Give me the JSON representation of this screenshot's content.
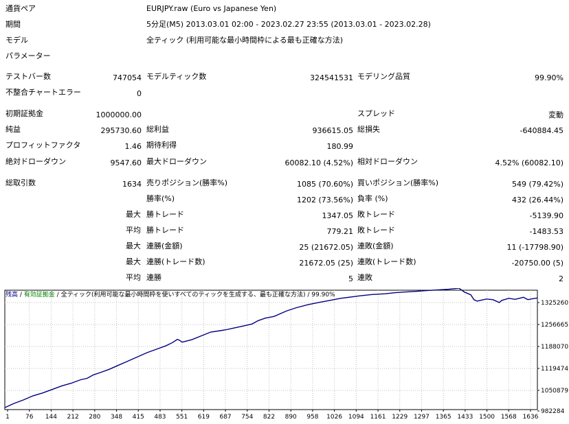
{
  "info": {
    "symbol_label": "通貨ペア",
    "symbol_value": "EURJPY.raw (Euro vs Japanese Yen)",
    "period_label": "期間",
    "period_value": "5分足(M5) 2013.03.01 02:00 - 2023.02.27 23:55 (2013.03.01 - 2023.02.28)",
    "model_label": "モデル",
    "model_value": "全ティック (利用可能な最小時間枠による最も正確な方法)",
    "params_label": "パラメーター"
  },
  "stats": {
    "bars_label": "テストバー数",
    "bars_value": "747054",
    "ticks_label": "モデルティック数",
    "ticks_value": "324541531",
    "quality_label": "モデリング品質",
    "quality_value": "99.90%",
    "mismatch_label": "不整合チャートエラー",
    "mismatch_value": "0",
    "deposit_label": "初期証拠金",
    "deposit_value": "1000000.00",
    "spread_label": "スプレッド",
    "spread_value": "変動",
    "net_label": "純益",
    "net_value": "295730.60",
    "gross_profit_label": "総利益",
    "gross_profit_value": "936615.05",
    "gross_loss_label": "総損失",
    "gross_loss_value": "-640884.45",
    "pf_label": "プロフィットファクタ",
    "pf_value": "1.46",
    "payoff_label": "期待利得",
    "payoff_value": "180.99",
    "abs_dd_label": "絶対ドローダウン",
    "abs_dd_value": "9547.60",
    "max_dd_label": "最大ドローダウン",
    "max_dd_value": "60082.10 (4.52%)",
    "rel_dd_label": "相対ドローダウン",
    "rel_dd_value": "4.52% (60082.10)",
    "total_trades_label": "総取引数",
    "total_trades_value": "1634",
    "short_label": "売りポジション(勝率%)",
    "short_value": "1085 (70.60%)",
    "long_label": "買いポジション(勝率%)",
    "long_value": "549 (79.42%)",
    "win_pct_label": "勝率(%)",
    "win_pct_value": "1202 (73.56%)",
    "loss_pct_label": "負率 (%)",
    "loss_pct_value": "432 (26.44%)",
    "largest_label": "最大",
    "win_trade_label": "勝トレード",
    "largest_win_value": "1347.05",
    "loss_trade_label": "敗トレード",
    "largest_loss_value": "-5139.90",
    "average_label": "平均",
    "avg_win_value": "779.21",
    "avg_loss_value": "-1483.53",
    "max2_label": "最大",
    "consec_wins_money_label": "連勝(金額)",
    "consec_wins_money_value": "25 (21672.05)",
    "consec_losses_money_label": "連敗(金額)",
    "consec_losses_money_value": "11 (-17798.90)",
    "max3_label": "最大",
    "consec_wins_count_label": "連勝(トレード数)",
    "consec_wins_count_value": "21672.05 (25)",
    "consec_losses_count_label": "連敗(トレード数)",
    "consec_losses_count_value": "-20750.00 (5)",
    "average2_label": "平均",
    "avg_consec_wins_label": "連勝",
    "avg_consec_wins_value": "5",
    "avg_consec_losses_label": "連敗",
    "avg_consec_losses_value": "2"
  },
  "chart_title": {
    "balance": "残高",
    "sep1": " / ",
    "equity": "有効証拠金",
    "sep2": " / ",
    "model": "全ティック(利用可能な最小時間枠を使いすべてのティックを生成する、最も正確な方法)",
    "sep3": " / ",
    "quality": "99.90%"
  },
  "chart_data": {
    "type": "line",
    "title": "",
    "xlabel": "",
    "ylabel": "",
    "x_ticks": [
      "1",
      "76",
      "144",
      "212",
      "280",
      "348",
      "415",
      "483",
      "551",
      "619",
      "687",
      "754",
      "822",
      "890",
      "958",
      "1026",
      "1094",
      "1161",
      "1229",
      "1297",
      "1365",
      "1433",
      "1500",
      "1568",
      "1636"
    ],
    "y_ticks": [
      "1325260",
      "1256665",
      "1188070",
      "1119474",
      "1050879",
      "982284"
    ],
    "ylim": [
      982284,
      1325260
    ],
    "xlim": [
      1,
      1680
    ],
    "grid": true,
    "series": [
      {
        "color": "#000080",
        "x": [
          1,
          30,
          60,
          90,
          120,
          150,
          180,
          210,
          240,
          260,
          280,
          300,
          330,
          360,
          390,
          420,
          450,
          480,
          510,
          530,
          545,
          551,
          560,
          590,
          620,
          650,
          680,
          700,
          720,
          750,
          780,
          800,
          822,
          850,
          870,
          890,
          920,
          958,
          990,
          1026,
          1060,
          1094,
          1120,
          1161,
          1200,
          1229,
          1260,
          1297,
          1330,
          1365,
          1400,
          1433,
          1450,
          1470,
          1480,
          1490,
          1500,
          1520,
          1540,
          1560,
          1568,
          1590,
          1610,
          1636,
          1650,
          1660,
          1680
        ],
        "values": [
          988000,
          1000000,
          1010000,
          1022000,
          1030000,
          1040000,
          1050000,
          1058000,
          1068000,
          1072000,
          1082000,
          1088000,
          1098000,
          1110000,
          1122000,
          1134000,
          1146000,
          1156000,
          1166000,
          1175000,
          1184000,
          1182000,
          1176000,
          1183000,
          1194000,
          1205000,
          1209000,
          1212000,
          1216000,
          1222000,
          1228000,
          1238000,
          1245000,
          1250000,
          1258000,
          1266000,
          1275000,
          1284000,
          1290000,
          1296000,
          1302000,
          1306000,
          1309000,
          1313000,
          1315000,
          1318000,
          1320000,
          1322000,
          1324000,
          1326000,
          1328000,
          1331000,
          1320000,
          1312000,
          1298000,
          1294000,
          1296000,
          1300000,
          1298000,
          1290000,
          1296000,
          1302000,
          1299000,
          1305000,
          1298000,
          1300000,
          1303000
        ]
      }
    ]
  }
}
